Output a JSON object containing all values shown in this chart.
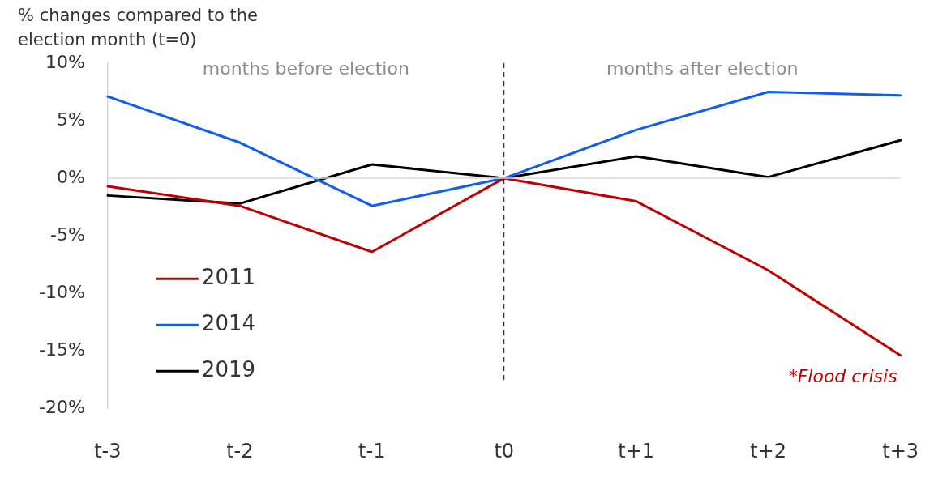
{
  "chart_data": {
    "type": "line",
    "ylabel": "% changes compared to the election month (t=0)",
    "categories": [
      "t-3",
      "t-2",
      "t-1",
      "t0",
      "t+1",
      "t+2",
      "t+3"
    ],
    "series": [
      {
        "name": "2011",
        "color": "#c00000",
        "values": [
          -0.7,
          -2.4,
          -6.4,
          0,
          -2.0,
          -8.0,
          -15.4
        ]
      },
      {
        "name": "2014",
        "color": "#0f5ef0",
        "values": [
          7.1,
          3.1,
          -2.4,
          0,
          4.2,
          7.5,
          7.2
        ]
      },
      {
        "name": "2019",
        "color": "#000000",
        "values": [
          -1.5,
          -2.2,
          1.2,
          0,
          1.9,
          0.1,
          3.3
        ]
      }
    ],
    "ylim": [
      -20,
      10
    ],
    "yticks": [
      {
        "value": -20,
        "label": "-20%"
      },
      {
        "value": -15,
        "label": "-15%"
      },
      {
        "value": -10,
        "label": "-10%"
      },
      {
        "value": -5,
        "label": "-5%"
      },
      {
        "value": 0,
        "label": "0%"
      },
      {
        "value": 5,
        "label": "5%"
      },
      {
        "value": 10,
        "label": "10%"
      }
    ],
    "ref_lines": [
      {
        "axis": "x",
        "value": "t0",
        "color": "#000000",
        "line_style": "dashed"
      }
    ],
    "annotations": [
      "months before election",
      "months after election",
      "*Flood crisis"
    ],
    "grid": false,
    "legend": "bottom left",
    "marker": "none",
    "line_style": "solid"
  }
}
